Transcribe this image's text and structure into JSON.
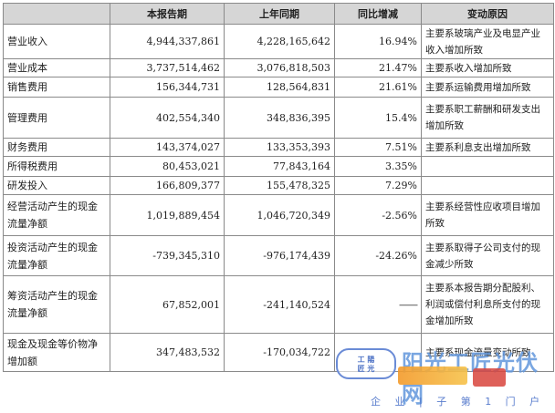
{
  "table": {
    "headers": [
      "",
      "本报告期",
      "上年同期",
      "同比增减",
      "变动原因"
    ],
    "rows": [
      {
        "item": "营业收入",
        "current": "4,944,337,861",
        "prior": "4,228,165,642",
        "change": "16.94%",
        "reason": "主要系玻璃产业及电显产业收入增加所致"
      },
      {
        "item": "营业成本",
        "current": "3,737,514,462",
        "prior": "3,076,818,503",
        "change": "21.47%",
        "reason": "主要系收入增加所致"
      },
      {
        "item": "销售费用",
        "current": "156,344,731",
        "prior": "128,564,831",
        "change": "21.61%",
        "reason": "主要系运输费用增加所致"
      },
      {
        "item": "管理费用",
        "current": "402,554,340",
        "prior": "348,836,395",
        "change": "15.4%",
        "reason": "主要系职工薪酬和研发支出增加所致"
      },
      {
        "item": "财务费用",
        "current": "143,374,027",
        "prior": "133,353,393",
        "change": "7.51%",
        "reason": "主要系利息支出增加所致"
      },
      {
        "item": "所得税费用",
        "current": "80,453,021",
        "prior": "77,843,164",
        "change": "3.35%",
        "reason": ""
      },
      {
        "item": "研发投入",
        "current": "166,809,377",
        "prior": "155,478,325",
        "change": "7.29%",
        "reason": ""
      },
      {
        "item": "经营活动产生的现金流量净额",
        "current": "1,019,889,454",
        "prior": "1,046,720,349",
        "change": "-2.56%",
        "reason": "主要系经营性应收项目增加所致"
      },
      {
        "item": "投资活动产生的现金流量净额",
        "current": "-739,345,310",
        "prior": "-976,174,439",
        "change": "-24.26%",
        "reason": "主要系取得子公司支付的现金减少所致"
      },
      {
        "item": "筹资活动产生的现金流量净额",
        "current": "67,852,001",
        "prior": "-241,140,524",
        "change": "——",
        "reason": "主要系本报告期分配股利、利润或偿付利息所支付的现金增加所致"
      },
      {
        "item": "现金及现金等价物净增加额",
        "current": "347,483,532",
        "prior": "-170,034,722",
        "change": "",
        "reason": "主要系现金流量变动所致"
      }
    ]
  },
  "watermark": {
    "seal_line1": "工 陽",
    "seal_line2": "匠 光",
    "title": "阳光工匠光伏网",
    "subtitle": "企 业 | 子 第 1 门 户",
    "brand_color": "#6296dc"
  }
}
